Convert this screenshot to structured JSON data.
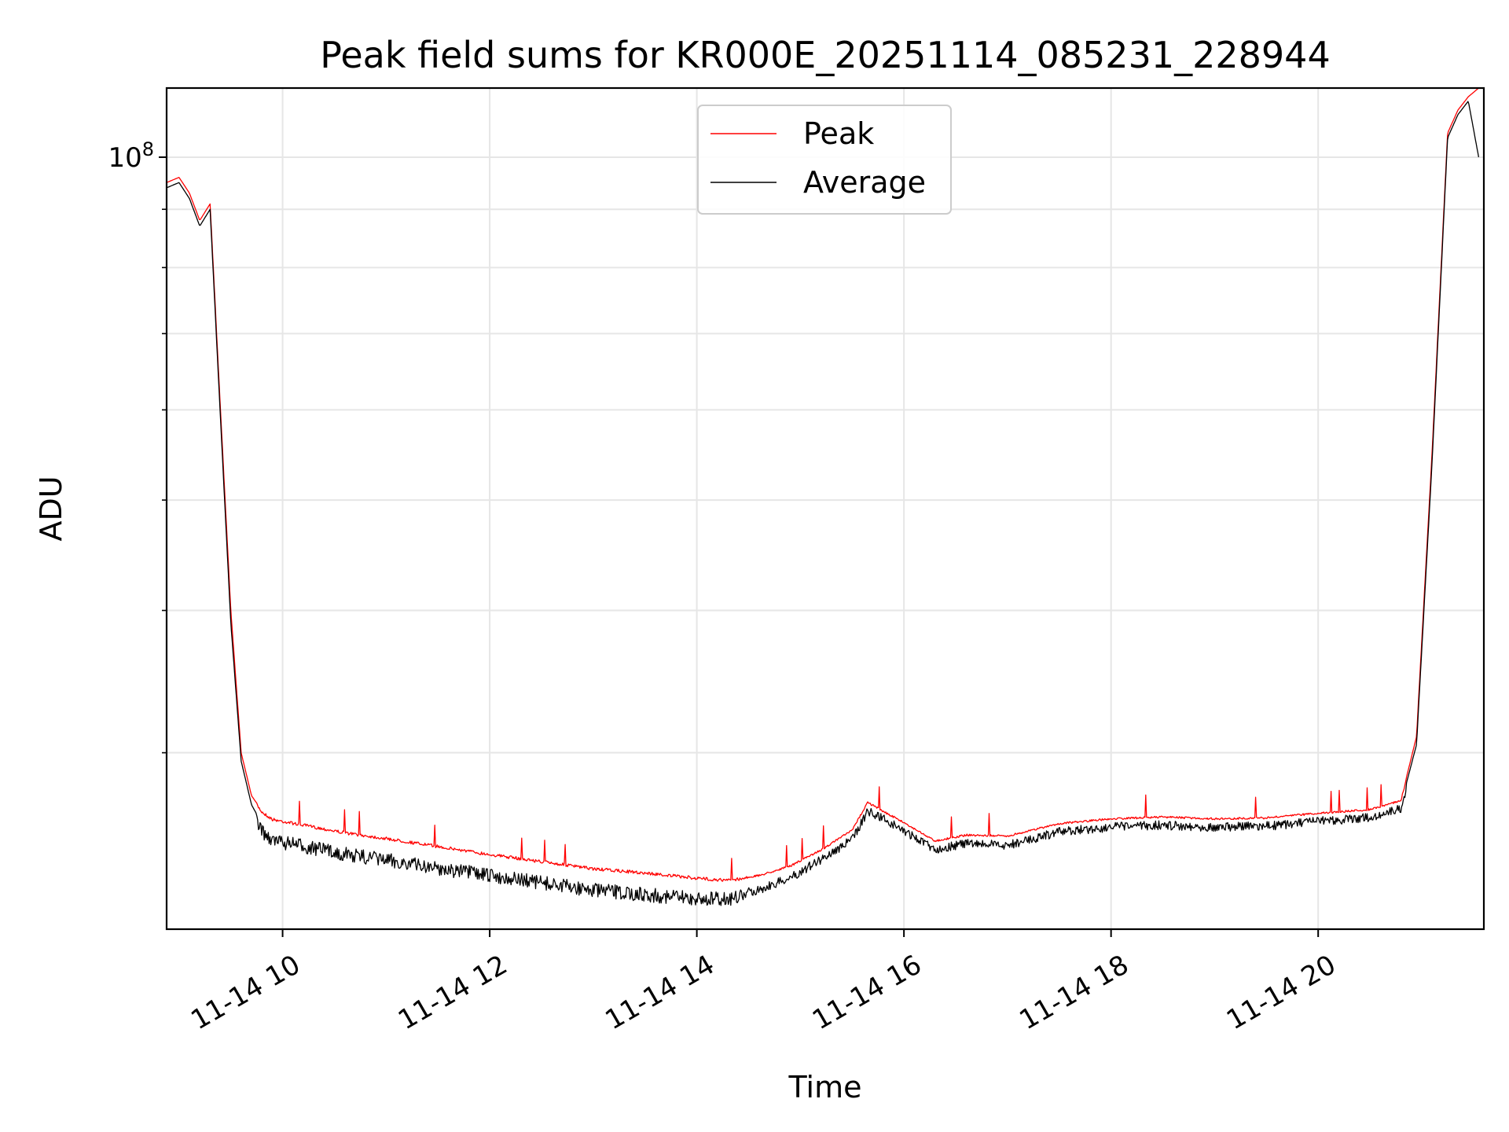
{
  "chart_data": {
    "type": "line",
    "title": "Peak field sums for KR000E_20251114_085231_228944",
    "xlabel": "Time",
    "ylabel": "ADU",
    "yscale": "log",
    "ylim": [
      21000000,
      115000000
    ],
    "xlim": [
      8.88,
      21.6
    ],
    "x_tick_values": [
      10,
      12,
      14,
      16,
      18,
      20
    ],
    "x_tick_labels": [
      "11-14 10",
      "11-14 12",
      "11-14 14",
      "11-14 16",
      "11-14 18",
      "11-14 20"
    ],
    "y_major_ticks": [
      {
        "value": 100000000,
        "base": "10",
        "exp": "8"
      }
    ],
    "y_minor_ticks": [
      30000000,
      40000000,
      50000000,
      60000000,
      70000000,
      80000000,
      90000000
    ],
    "grid": true,
    "legend": {
      "placement": "top-center",
      "entries": [
        {
          "name": "Peak",
          "color": "#ff0000"
        },
        {
          "name": "Average",
          "color": "#000000"
        }
      ]
    },
    "series": [
      {
        "name": "Peak",
        "color": "#ff0000",
        "x": [
          8.88,
          9.0,
          9.1,
          9.2,
          9.3,
          9.4,
          9.5,
          9.6,
          9.7,
          9.8,
          9.9,
          10.2,
          10.6,
          11.0,
          11.5,
          12.0,
          12.5,
          13.0,
          13.5,
          14.0,
          14.3,
          14.6,
          14.9,
          15.2,
          15.5,
          15.65,
          15.8,
          16.0,
          16.3,
          16.6,
          17.0,
          17.5,
          18.0,
          18.5,
          19.0,
          19.5,
          20.0,
          20.5,
          20.8,
          20.95,
          21.1,
          21.25,
          21.35,
          21.45,
          21.55
        ],
        "y": [
          95000000,
          96000000,
          93000000,
          88000000,
          91000000,
          60000000,
          40000000,
          30000000,
          27500000,
          26700000,
          26300000,
          26000000,
          25600000,
          25300000,
          24900000,
          24500000,
          24150000,
          23800000,
          23600000,
          23350000,
          23250000,
          23450000,
          23900000,
          24700000,
          25700000,
          27200000,
          26700000,
          26100000,
          25150000,
          25450000,
          25400000,
          26050000,
          26300000,
          26400000,
          26300000,
          26350000,
          26600000,
          26800000,
          27300000,
          31000000,
          55000000,
          105000000,
          110000000,
          113000000,
          115000000
        ]
      },
      {
        "name": "Average",
        "color": "#000000",
        "x": [
          8.88,
          9.0,
          9.1,
          9.2,
          9.3,
          9.4,
          9.5,
          9.6,
          9.7,
          9.8,
          9.9,
          10.2,
          10.6,
          11.0,
          11.5,
          12.0,
          12.5,
          13.0,
          13.5,
          14.0,
          14.3,
          14.6,
          14.9,
          15.2,
          15.5,
          15.65,
          15.8,
          16.0,
          16.3,
          16.6,
          17.0,
          17.5,
          18.0,
          18.5,
          19.0,
          19.5,
          20.0,
          20.5,
          20.8,
          20.95,
          21.1,
          21.25,
          21.35,
          21.45,
          21.55
        ],
        "y": [
          94000000,
          95000000,
          92000000,
          87000000,
          90000000,
          59000000,
          39000000,
          29500000,
          27000000,
          26000000,
          25500000,
          25200000,
          24800000,
          24500000,
          24100000,
          23750000,
          23400000,
          23050000,
          22850000,
          22650000,
          22650000,
          22950000,
          23500000,
          24400000,
          25400000,
          26900000,
          26500000,
          25850000,
          24900000,
          25200000,
          25100000,
          25800000,
          26050000,
          26150000,
          26050000,
          26100000,
          26350000,
          26550000,
          27050000,
          30500000,
          54000000,
          104000000,
          109000000,
          112000000,
          100000000
        ]
      }
    ]
  }
}
